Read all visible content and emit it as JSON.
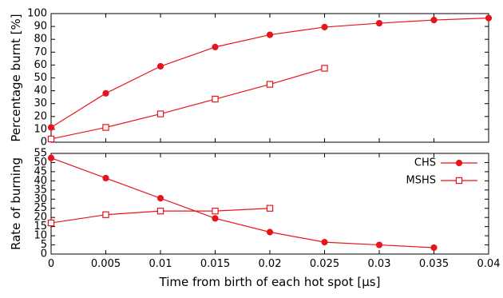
{
  "chart_data": [
    {
      "type": "line",
      "ylabel": "Percentage burnt [%]",
      "xlim": [
        0,
        0.04
      ],
      "ylim": [
        0,
        100
      ],
      "xticks": [
        "0",
        "0.005",
        "0.01",
        "0.015",
        "0.02",
        "0.025",
        "0.03",
        "0.035",
        "0.04"
      ],
      "yticks": [
        "0",
        "10",
        "20",
        "30",
        "40",
        "50",
        "60",
        "70",
        "80",
        "90",
        "100"
      ],
      "grid": false,
      "series": [
        {
          "name": "CHS",
          "marker": "filled-circle",
          "color": "#e8141c",
          "x": [
            0,
            0.005,
            0.01,
            0.015,
            0.02,
            0.025,
            0.03,
            0.035,
            0.04
          ],
          "y": [
            11.5,
            38,
            59,
            74,
            83.5,
            89.5,
            92.5,
            95,
            96.5
          ]
        },
        {
          "name": "MSHS",
          "marker": "open-square",
          "color": "#e8141c",
          "x": [
            0,
            0.005,
            0.01,
            0.015,
            0.02,
            0.025
          ],
          "y": [
            2.5,
            11.5,
            22,
            33.5,
            45,
            57.5
          ]
        }
      ]
    },
    {
      "type": "line",
      "xlabel": "Time from birth of each hot spot [μs]",
      "ylabel": "Rate of burning",
      "xlim": [
        0,
        0.04
      ],
      "ylim": [
        0,
        55
      ],
      "xticks": [
        "0",
        "0.005",
        "0.01",
        "0.015",
        "0.02",
        "0.025",
        "0.03",
        "0.035",
        "0.04"
      ],
      "yticks": [
        "0",
        "5",
        "10",
        "15",
        "20",
        "25",
        "30",
        "35",
        "40",
        "45",
        "50",
        "55"
      ],
      "grid": false,
      "legend": "top-right",
      "series": [
        {
          "name": "CHS",
          "marker": "filled-circle",
          "color": "#e8141c",
          "x": [
            0,
            0.005,
            0.01,
            0.015,
            0.02,
            0.025,
            0.03,
            0.035
          ],
          "y": [
            52.5,
            41.5,
            30.5,
            19.5,
            12,
            6.5,
            5,
            3.5
          ]
        },
        {
          "name": "MSHS",
          "marker": "open-square",
          "color": "#e8141c",
          "x": [
            0,
            0.005,
            0.01,
            0.015,
            0.02
          ],
          "y": [
            17,
            21.5,
            23.5,
            23.5,
            25
          ]
        }
      ]
    }
  ]
}
